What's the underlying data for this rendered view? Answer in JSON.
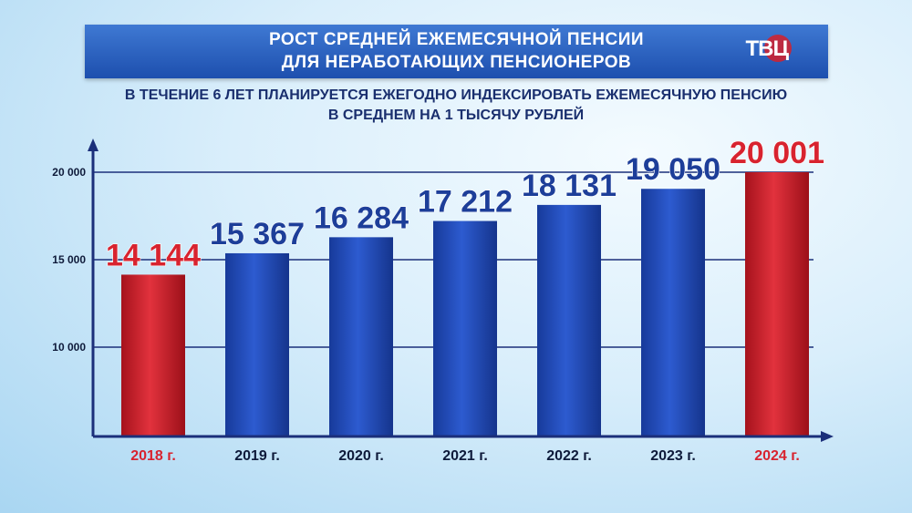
{
  "header": {
    "title_line1": "РОСТ СРЕДНЕЙ ЕЖЕМЕСЯЧНОЙ ПЕНСИИ",
    "title_line2": "ДЛЯ НЕРАБОТАЮЩИХ ПЕНСИОНЕРОВ",
    "logo_text": "ТВЦ"
  },
  "subtitle": {
    "line1": "В ТЕЧЕНИЕ 6 ЛЕТ ПЛАНИРУЕТСЯ ЕЖЕГОДНО ИНДЕКСИРОВАТЬ ЕЖЕМЕСЯЧНУЮ ПЕНСИЮ",
    "line2": "В СРЕДНЕМ НА 1 ТЫСЯЧУ РУБЛЕЙ"
  },
  "colors": {
    "blue_bar": "#1f45b0",
    "red_bar": "#c81e2a",
    "blue_text": "#1d3e99",
    "red_text": "#d8232f",
    "axis": "#1b2f7a"
  },
  "chart_data": {
    "type": "bar",
    "categories": [
      "2018 г.",
      "2019 г.",
      "2020 г.",
      "2021 г.",
      "2022 г.",
      "2023 г.",
      "2024 г."
    ],
    "values": [
      14144,
      15367,
      16284,
      17212,
      18131,
      19050,
      20001
    ],
    "value_labels": [
      "14 144",
      "15 367",
      "16 284",
      "17 212",
      "18 131",
      "19 050",
      "20 001"
    ],
    "highlight": [
      true,
      false,
      false,
      false,
      false,
      false,
      true
    ],
    "yticks": [
      10000,
      15000,
      20000
    ],
    "ytick_labels": [
      "10 000",
      "15 000",
      "20 000"
    ],
    "ylim": [
      5000,
      22000
    ],
    "grid": true
  }
}
